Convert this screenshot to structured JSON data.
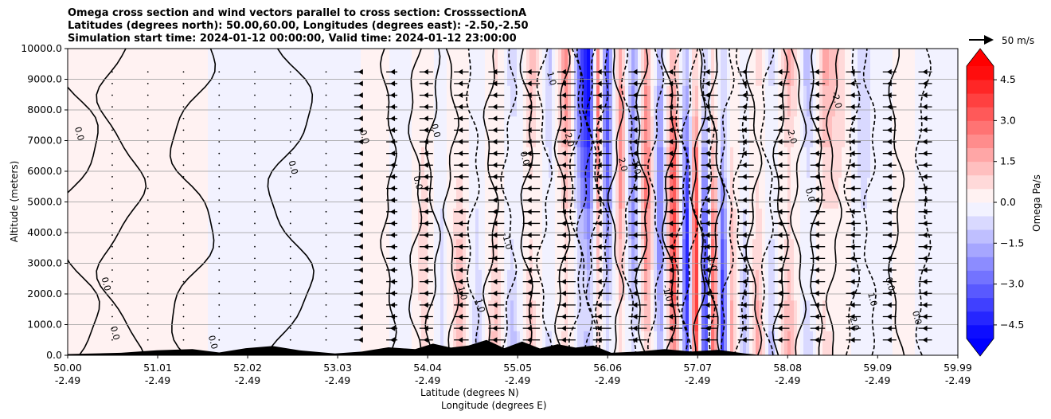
{
  "title_lines": [
    "Omega cross section and wind vectors parallel to cross section: CrosssectionA",
    "Latitudes (degrees north): 50.00,60.00, Longitudes (degrees east): -2.50,-2.50",
    "Simulation start time: 2024-01-12 00:00:00, Valid time: 2024-01-12 23:00:00"
  ],
  "ylabel": "Altitude (meters)",
  "xlabel_lat": "Latitude (degrees N)",
  "xlabel_lon": "Longitude (degrees E)",
  "colorbar_label": "Omega Pa/s",
  "reference_vector_label": "50 m/s",
  "chart_data": {
    "type": "heatmap",
    "title": "Omega cross section and wind vectors parallel to cross section: CrosssectionA",
    "ylim": [
      0,
      10000
    ],
    "yticks": [
      0,
      1000,
      2000,
      3000,
      4000,
      5000,
      6000,
      7000,
      8000,
      9000,
      10000
    ],
    "ytick_labels": [
      "0.0",
      "1000.0",
      "2000.0",
      "3000.0",
      "4000.0",
      "5000.0",
      "6000.0",
      "7000.0",
      "8000.0",
      "9000.0",
      "10000.0"
    ],
    "xlim": [
      50.0,
      59.99
    ],
    "xticks_lat": [
      "50.00",
      "51.01",
      "52.02",
      "53.03",
      "54.04",
      "55.05",
      "56.06",
      "57.07",
      "58.08",
      "59.09",
      "59.99"
    ],
    "xticks_lon": [
      "-2.49",
      "-2.49",
      "-2.49",
      "-2.49",
      "-2.49",
      "-2.49",
      "-2.49",
      "-2.49",
      "-2.49",
      "-2.49",
      "-2.49"
    ],
    "colorbar": {
      "min": -5.0,
      "max": 5.0,
      "step": 0.5,
      "extend": "both",
      "tick_values": [
        4.5,
        3.0,
        1.5,
        0.0,
        -1.5,
        -3.0,
        -4.5
      ],
      "tick_labels": [
        "4.5",
        "3.0",
        "1.5",
        "0.0",
        "−1.5",
        "−3.0",
        "−4.5"
      ]
    },
    "contour_labels": [
      "0.0",
      "1.0",
      "-1.0",
      "2.0",
      "-2.0"
    ],
    "omega_profile": {
      "lat": [
        50.0,
        50.2,
        50.5,
        50.9,
        51.3,
        51.7,
        52.2,
        52.7,
        53.1,
        53.5,
        53.8,
        54.0,
        54.2,
        54.4,
        54.6,
        54.8,
        55.0,
        55.2,
        55.4,
        55.6,
        55.75,
        55.85,
        55.95,
        56.05,
        56.2,
        56.35,
        56.5,
        56.65,
        56.8,
        56.95,
        57.05,
        57.15,
        57.25,
        57.35,
        57.45,
        57.6,
        57.75,
        57.9,
        58.1,
        58.3,
        58.5,
        58.7,
        58.9,
        59.1,
        59.4,
        59.7,
        59.99
      ],
      "omega_pa_s": [
        0.2,
        0.2,
        0.2,
        0.2,
        0.2,
        -0.1,
        -0.2,
        -0.2,
        -0.2,
        0.2,
        -0.3,
        0.8,
        -0.6,
        1.4,
        -1.1,
        1.5,
        -1.8,
        2.0,
        -1.5,
        2.6,
        -3.2,
        -5.0,
        2.6,
        -3.8,
        2.4,
        -2.6,
        3.0,
        -3.1,
        4.2,
        -4.5,
        4.8,
        -4.8,
        3.8,
        -4.2,
        1.6,
        -1.4,
        2.0,
        -1.6,
        2.6,
        -1.8,
        1.9,
        0.7,
        -0.9,
        -0.2,
        0.2,
        -0.3,
        -0.2
      ]
    },
    "wind_vectors": {
      "description": "meridional wind parallel to cross section",
      "lat": [
        50.5,
        50.9,
        51.3,
        51.7,
        52.1,
        52.5,
        52.9,
        53.3,
        53.7,
        54.1,
        54.5,
        54.9,
        55.3,
        55.7,
        56.1,
        56.5,
        56.9,
        57.3,
        57.7,
        58.1,
        58.5,
        58.9,
        59.3,
        59.7
      ],
      "speed_m_s": [
        0,
        0,
        0,
        0,
        0,
        0,
        0,
        -3,
        -6,
        -8,
        -9,
        -10,
        -11,
        -12,
        -12,
        -12,
        -12,
        -11,
        -10,
        -10,
        -9,
        -9,
        -8,
        -8
      ]
    },
    "terrain": {
      "lat": [
        50.0,
        50.6,
        51.0,
        51.4,
        51.7,
        52.0,
        52.3,
        52.6,
        53.0,
        53.3,
        53.6,
        53.9,
        54.1,
        54.3,
        54.5,
        54.7,
        54.9,
        55.1,
        55.3,
        55.5,
        55.7,
        55.9,
        56.1,
        56.4,
        56.7,
        57.0,
        57.3,
        57.6,
        57.8,
        58.0
      ],
      "height_m": [
        40,
        80,
        160,
        200,
        90,
        230,
        300,
        160,
        60,
        120,
        260,
        200,
        380,
        250,
        320,
        500,
        230,
        450,
        220,
        360,
        250,
        320,
        80,
        120,
        200,
        120,
        180,
        60,
        0,
        0
      ]
    }
  }
}
